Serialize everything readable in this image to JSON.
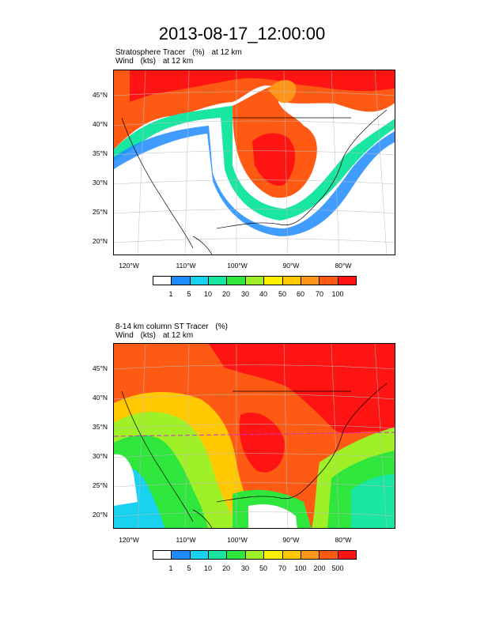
{
  "title": "2013-08-17_12:00:00",
  "panels": [
    {
      "field_label": "Stratosphere Tracer",
      "field_units": "(%)",
      "field_level": "at   12 km",
      "wind_label": "Wind",
      "wind_units": "(kts)",
      "wind_level": "at   12 km",
      "lat_labels": [
        "45°N",
        "40°N",
        "35°N",
        "30°N",
        "25°N",
        "20°N"
      ],
      "lon_labels": [
        "120°W",
        "110°W",
        "100°W",
        "90°W",
        "80°W"
      ],
      "colorbar_labels": [
        "1",
        "5",
        "10",
        "20",
        "30",
        "40",
        "50",
        "60",
        "70",
        "100"
      ]
    },
    {
      "field_label": "8-14 km column ST Tracer",
      "field_units": "(%)",
      "field_level": "",
      "wind_label": "Wind",
      "wind_units": "(kts)",
      "wind_level": "at   12 km",
      "lat_labels": [
        "45°N",
        "40°N",
        "35°N",
        "30°N",
        "25°N",
        "20°N"
      ],
      "lon_labels": [
        "120°W",
        "110°W",
        "100°W",
        "90°W",
        "80°W"
      ],
      "colorbar_labels": [
        "1",
        "5",
        "10",
        "20",
        "30",
        "50",
        "70",
        "100",
        "200",
        "500"
      ]
    }
  ],
  "colors": {
    "palette": [
      "#ffffff",
      "#1e8cff",
      "#19d2f0",
      "#19e6a0",
      "#2ee63c",
      "#a0f028",
      "#fff000",
      "#ffc800",
      "#ff9619",
      "#ff5a14",
      "#ff1414"
    ]
  }
}
